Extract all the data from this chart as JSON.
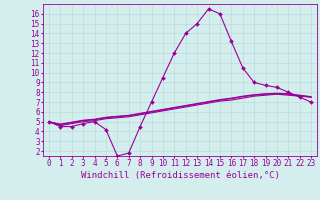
{
  "x": [
    0,
    1,
    2,
    3,
    4,
    5,
    6,
    7,
    8,
    9,
    10,
    11,
    12,
    13,
    14,
    15,
    16,
    17,
    18,
    19,
    20,
    21,
    22,
    23
  ],
  "line1": [
    5.0,
    4.5,
    4.5,
    4.8,
    5.0,
    4.2,
    1.5,
    1.8,
    4.5,
    7.0,
    9.5,
    12.0,
    14.0,
    15.0,
    16.5,
    16.0,
    13.2,
    10.5,
    9.0,
    8.7,
    8.5,
    8.0,
    7.5,
    7.0
  ],
  "line2": [
    5.0,
    4.6,
    4.8,
    5.0,
    5.1,
    5.3,
    5.4,
    5.5,
    5.7,
    5.9,
    6.1,
    6.3,
    6.5,
    6.7,
    6.9,
    7.1,
    7.2,
    7.4,
    7.6,
    7.7,
    7.8,
    7.7,
    7.6,
    7.5
  ],
  "line3": [
    5.0,
    4.7,
    4.9,
    5.1,
    5.2,
    5.4,
    5.5,
    5.6,
    5.8,
    6.0,
    6.2,
    6.4,
    6.6,
    6.8,
    7.0,
    7.2,
    7.35,
    7.55,
    7.7,
    7.8,
    7.85,
    7.8,
    7.65,
    7.5
  ],
  "line4": [
    5.0,
    4.75,
    4.95,
    5.15,
    5.25,
    5.45,
    5.55,
    5.65,
    5.85,
    6.05,
    6.25,
    6.45,
    6.65,
    6.85,
    7.05,
    7.25,
    7.4,
    7.6,
    7.75,
    7.85,
    7.9,
    7.85,
    7.7,
    7.55
  ],
  "color": "#990099",
  "bg_color": "#d4eeee",
  "grid_color": "#b8d8d8",
  "xlabel": "Windchill (Refroidissement éolien,°C)",
  "ylabel_ticks": [
    2,
    3,
    4,
    5,
    6,
    7,
    8,
    9,
    10,
    11,
    12,
    13,
    14,
    15,
    16
  ],
  "xlim": [
    -0.5,
    23.5
  ],
  "ylim": [
    1.5,
    17.0
  ],
  "marker": "D",
  "markersize": 2.0,
  "linewidth": 0.8,
  "xlabel_fontsize": 6.5,
  "tick_fontsize": 5.5
}
